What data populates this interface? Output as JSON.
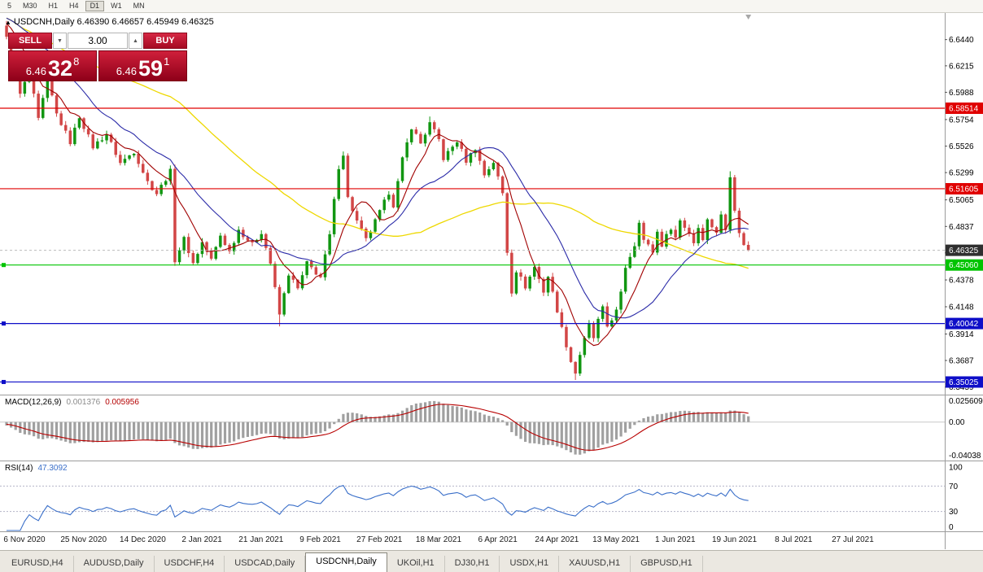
{
  "toolbar": {
    "timeframes": [
      "5",
      "M30",
      "H1",
      "H4",
      "D1",
      "W1",
      "MN"
    ],
    "active": "D1"
  },
  "icons": {
    "collapse": "▲",
    "lot_down": "▼",
    "lot_up": "▲"
  },
  "trade_panel": {
    "sell_label": "SELL",
    "buy_label": "BUY",
    "lots": "3.00",
    "sell_price_small": "6.46",
    "sell_price_big": "32",
    "sell_price_sup": "8",
    "buy_price_small": "6.46",
    "buy_price_big": "59",
    "buy_price_sup": "1"
  },
  "chart_data": {
    "type": "candlestick",
    "symbol": "USDCNH",
    "period": "Daily",
    "title": "USDCNH,Daily 6.46390 6.46657 6.45949 6.46325",
    "ohlc": {
      "open": "6.46390",
      "high": "6.46657",
      "low": "6.45949",
      "close": "6.46325"
    },
    "price_axis": {
      "top": 6.6668,
      "bottom": 6.3401,
      "ticks": [
        "6.6440",
        "6.6215",
        "6.5988",
        "6.5754",
        "6.5526",
        "6.5299",
        "6.5065",
        "6.4837",
        "6.4610",
        "6.4378",
        "6.4148",
        "6.3914",
        "6.3687",
        "6.3459"
      ]
    },
    "time_axis": {
      "labels": [
        "6 Nov 2020",
        "25 Nov 2020",
        "14 Dec 2020",
        "2 Jan 2021",
        "21 Jan 2021",
        "9 Feb 2021",
        "27 Feb 2021",
        "18 Mar 2021",
        "6 Apr 2021",
        "24 Apr 2021",
        "13 May 2021",
        "1 Jun 2021",
        "19 Jun 2021",
        "8 Jul 2021",
        "27 Jul 2021"
      ]
    },
    "bars": {
      "count": 164,
      "first_open": 6.656,
      "noise": 0.0022,
      "close_anchors": [
        [
          0,
          6.645
        ],
        [
          3,
          6.597
        ],
        [
          5,
          6.616
        ],
        [
          7,
          6.575
        ],
        [
          9,
          6.61
        ],
        [
          11,
          6.58
        ],
        [
          14,
          6.556
        ],
        [
          16,
          6.578
        ],
        [
          19,
          6.552
        ],
        [
          22,
          6.563
        ],
        [
          25,
          6.538
        ],
        [
          28,
          6.548
        ],
        [
          31,
          6.522
        ],
        [
          33,
          6.512
        ],
        [
          36,
          6.531
        ],
        [
          37,
          6.455
        ],
        [
          39,
          6.473
        ],
        [
          41,
          6.452
        ],
        [
          43,
          6.47
        ],
        [
          45,
          6.455
        ],
        [
          47,
          6.476
        ],
        [
          49,
          6.462
        ],
        [
          51,
          6.481
        ],
        [
          54,
          6.468
        ],
        [
          56,
          6.479
        ],
        [
          58,
          6.452
        ],
        [
          60,
          6.408
        ],
        [
          62,
          6.443
        ],
        [
          64,
          6.43
        ],
        [
          66,
          6.452
        ],
        [
          69,
          6.44
        ],
        [
          71,
          6.476
        ],
        [
          73,
          6.535
        ],
        [
          74,
          6.546
        ],
        [
          75,
          6.508
        ],
        [
          77,
          6.488
        ],
        [
          79,
          6.472
        ],
        [
          82,
          6.496
        ],
        [
          84,
          6.513
        ],
        [
          85,
          6.502
        ],
        [
          87,
          6.541
        ],
        [
          89,
          6.569
        ],
        [
          91,
          6.555
        ],
        [
          93,
          6.572
        ],
        [
          95,
          6.558
        ],
        [
          96,
          6.542
        ],
        [
          99,
          6.557
        ],
        [
          101,
          6.54
        ],
        [
          103,
          6.551
        ],
        [
          105,
          6.528
        ],
        [
          107,
          6.539
        ],
        [
          109,
          6.512
        ],
        [
          110,
          6.462
        ],
        [
          111,
          6.428
        ],
        [
          112,
          6.446
        ],
        [
          114,
          6.432
        ],
        [
          116,
          6.449
        ],
        [
          118,
          6.428
        ],
        [
          119,
          6.441
        ],
        [
          121,
          6.412
        ],
        [
          122,
          6.396
        ],
        [
          124,
          6.368
        ],
        [
          125,
          6.358
        ],
        [
          126,
          6.374
        ],
        [
          128,
          6.399
        ],
        [
          129,
          6.388
        ],
        [
          130,
          6.403
        ],
        [
          131,
          6.413
        ],
        [
          132,
          6.398
        ],
        [
          134,
          6.411
        ],
        [
          135,
          6.426
        ],
        [
          136,
          6.449
        ],
        [
          138,
          6.468
        ],
        [
          139,
          6.489
        ],
        [
          140,
          6.472
        ],
        [
          142,
          6.462
        ],
        [
          143,
          6.479
        ],
        [
          144,
          6.468
        ],
        [
          146,
          6.483
        ],
        [
          147,
          6.474
        ],
        [
          148,
          6.489
        ],
        [
          150,
          6.478
        ],
        [
          151,
          6.47
        ],
        [
          152,
          6.483
        ],
        [
          153,
          6.474
        ],
        [
          154,
          6.489
        ],
        [
          156,
          6.479
        ],
        [
          157,
          6.493
        ],
        [
          158,
          6.481
        ],
        [
          159,
          6.528
        ],
        [
          160,
          6.499
        ],
        [
          161,
          6.477
        ],
        [
          162,
          6.469
        ],
        [
          163,
          6.4632
        ]
      ],
      "wick_overrides": [
        [
          0,
          "h",
          6.66
        ],
        [
          60,
          "l",
          6.398
        ],
        [
          74,
          "h",
          6.548
        ],
        [
          93,
          "h",
          6.578
        ],
        [
          125,
          "l",
          6.352
        ],
        [
          159,
          "h",
          6.531
        ]
      ]
    },
    "warmup": {
      "bars": 16,
      "start": 6.67,
      "end": 6.657
    },
    "ma_periods": {
      "fast": 8,
      "mid": 20,
      "slow": 55
    },
    "colors": {
      "up": "#119611",
      "down": "#D24646",
      "ma_fast": "#A00000",
      "ma_mid": "#2B2BA8",
      "ma_slow": "#EED800",
      "macd_hist": "#A0A0A0",
      "macd_signal": "#B80000",
      "rsi": "#3A6FC9",
      "bid_badge": "#2F2F2F"
    },
    "levels": [
      {
        "price": 6.58514,
        "label": "6.58514",
        "color": "#E00000",
        "handle": false
      },
      {
        "price": 6.51605,
        "label": "6.51605",
        "color": "#E00000",
        "handle": false
      },
      {
        "price": 6.4506,
        "label": "6.45060",
        "color": "#00C400",
        "handle": true
      },
      {
        "price": 6.40042,
        "label": "6.40042",
        "color": "#0E0EC8",
        "handle": true
      },
      {
        "price": 6.35025,
        "label": "6.35025",
        "color": "#0E0EC8",
        "handle": true
      }
    ],
    "bid": {
      "price": 6.46325,
      "label": "6.46325"
    },
    "macd": {
      "name": "MACD(12,26,9)",
      "fast": 12,
      "slow": 26,
      "signal": 9,
      "value_main": "0.001376",
      "value_signal": "0.005956",
      "axis": [
        "0.025609",
        "0.00",
        "-0.04038"
      ]
    },
    "rsi": {
      "name": "RSI(14)",
      "period": 14,
      "value": "47.3092",
      "levels": [
        70,
        30
      ],
      "axis": [
        "100",
        "70",
        "30",
        "0"
      ]
    }
  },
  "tabs": {
    "items": [
      "EURUSD,H4",
      "AUDUSD,Daily",
      "USDCHF,H4",
      "USDCAD,Daily",
      "USDCNH,Daily",
      "UKOil,H1",
      "DJ30,H1",
      "USDX,H1",
      "XAUUSD,H1",
      "GBPUSD,H1"
    ],
    "active": "USDCNH,Daily"
  }
}
